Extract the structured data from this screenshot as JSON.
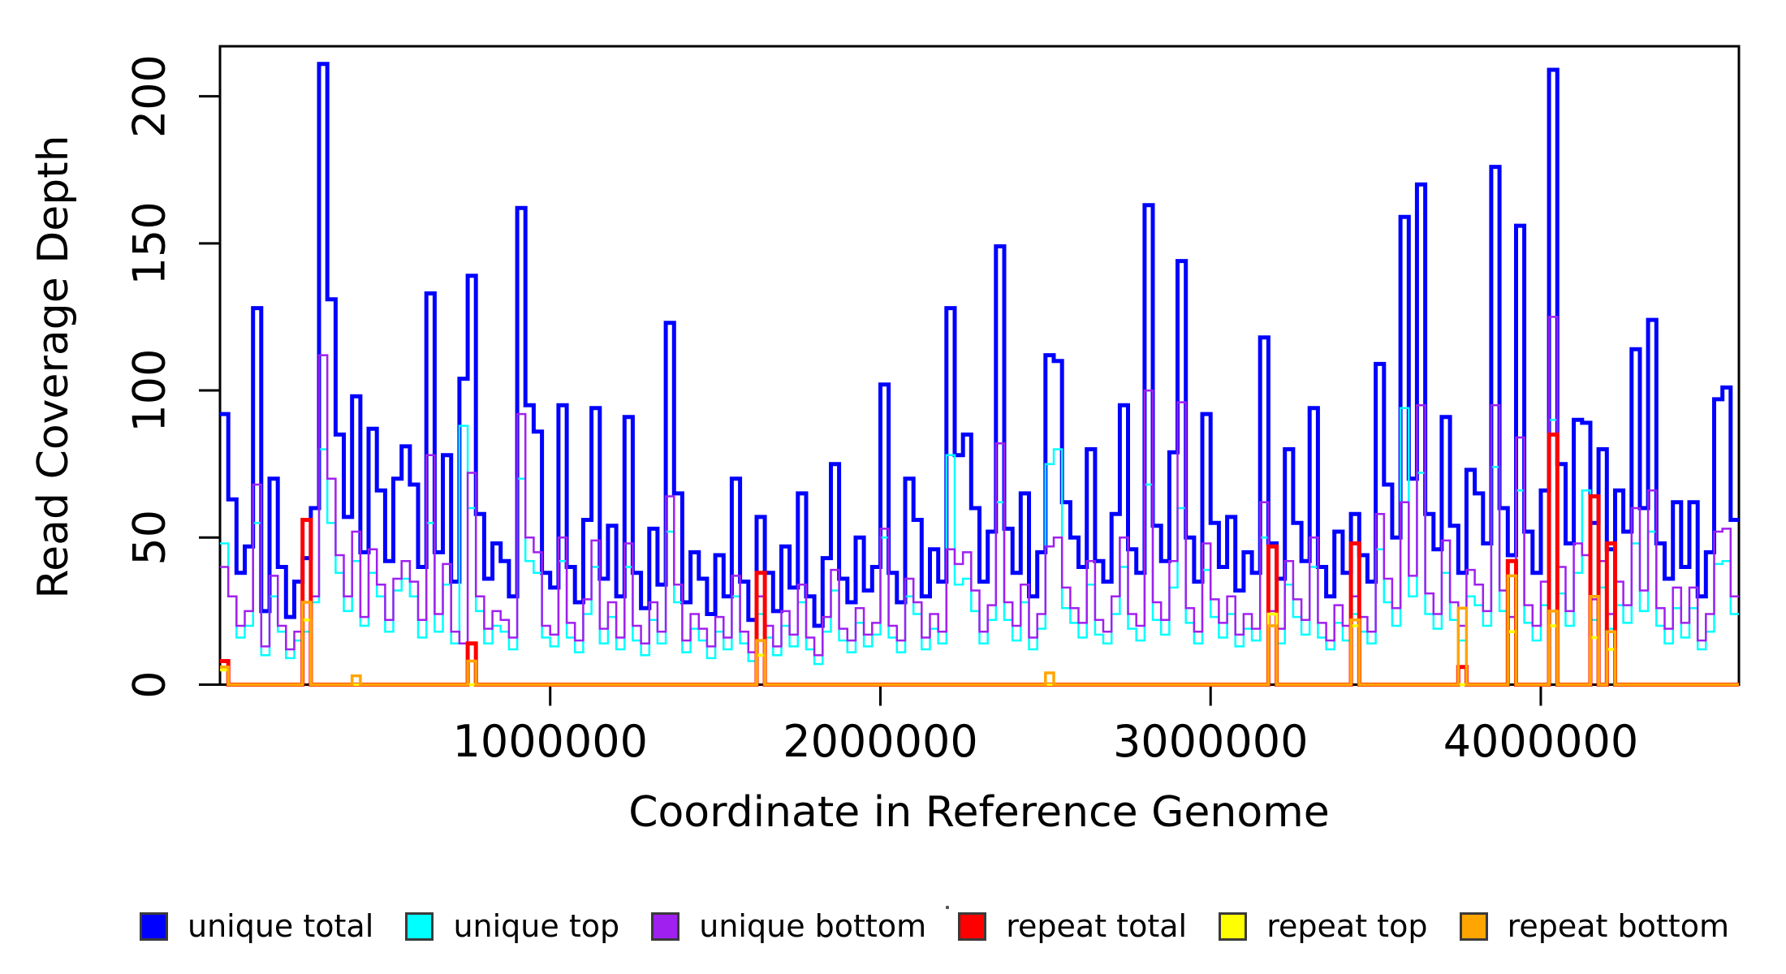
{
  "chart_data": {
    "type": "line",
    "subtype": "step-coverage-histogram",
    "title": "",
    "xlabel": "Coordinate in Reference Genome",
    "ylabel": "Read Coverage Depth",
    "xlim": [
      0,
      4600000
    ],
    "ylim": [
      0,
      217
    ],
    "x_ticks": [
      1000000,
      2000000,
      3000000,
      4000000
    ],
    "y_ticks": [
      0,
      50,
      100,
      150,
      200
    ],
    "grid": false,
    "legend_position": "bottom",
    "bin_size": 25000,
    "n_bins": 184,
    "series": [
      {
        "name": "unique total",
        "color": "#0000FF",
        "line_width": 5,
        "values": [
          92,
          63,
          38,
          47,
          128,
          25,
          70,
          40,
          23,
          35,
          43,
          60,
          211,
          131,
          85,
          57,
          98,
          45,
          87,
          66,
          42,
          70,
          81,
          68,
          40,
          133,
          45,
          78,
          35,
          104,
          139,
          58,
          36,
          48,
          42,
          30,
          162,
          95,
          86,
          38,
          33,
          95,
          40,
          28,
          56,
          94,
          36,
          54,
          30,
          91,
          38,
          26,
          53,
          34,
          123,
          65,
          28,
          45,
          36,
          24,
          44,
          30,
          70,
          35,
          22,
          57,
          38,
          25,
          47,
          33,
          65,
          30,
          20,
          43,
          75,
          36,
          28,
          50,
          32,
          40,
          102,
          38,
          28,
          70,
          56,
          30,
          46,
          35,
          128,
          78,
          85,
          60,
          35,
          52,
          149,
          53,
          38,
          65,
          30,
          45,
          112,
          110,
          62,
          50,
          40,
          80,
          42,
          35,
          58,
          95,
          46,
          38,
          163,
          54,
          42,
          79,
          144,
          50,
          35,
          92,
          55,
          40,
          57,
          32,
          45,
          38,
          118,
          48,
          36,
          80,
          55,
          42,
          94,
          40,
          30,
          52,
          38,
          58,
          44,
          35,
          109,
          68,
          50,
          159,
          70,
          170,
          58,
          46,
          91,
          54,
          38,
          73,
          65,
          48,
          176,
          60,
          44,
          156,
          52,
          38,
          66,
          209,
          75,
          48,
          90,
          89,
          55,
          80,
          46,
          66,
          52,
          114,
          60,
          124,
          48,
          36,
          62,
          40,
          62,
          30,
          45,
          97,
          101,
          56
        ]
      },
      {
        "name": "unique top",
        "color": "#00FFFF",
        "line_width": 2.5,
        "values": [
          48,
          30,
          16,
          20,
          55,
          10,
          30,
          18,
          9,
          15,
          18,
          28,
          80,
          55,
          38,
          25,
          42,
          20,
          38,
          30,
          18,
          32,
          36,
          30,
          16,
          55,
          18,
          34,
          14,
          88,
          60,
          25,
          14,
          20,
          18,
          12,
          70,
          42,
          38,
          16,
          13,
          42,
          16,
          11,
          24,
          40,
          14,
          23,
          12,
          40,
          15,
          10,
          22,
          14,
          52,
          28,
          11,
          19,
          15,
          9,
          18,
          12,
          30,
          14,
          8,
          24,
          16,
          10,
          20,
          13,
          28,
          12,
          7,
          18,
          32,
          15,
          11,
          21,
          13,
          17,
          50,
          16,
          11,
          30,
          24,
          12,
          19,
          14,
          78,
          34,
          36,
          25,
          14,
          22,
          62,
          22,
          15,
          28,
          12,
          19,
          75,
          80,
          26,
          21,
          16,
          34,
          17,
          14,
          24,
          40,
          19,
          15,
          68,
          22,
          17,
          33,
          60,
          21,
          14,
          39,
          23,
          16,
          24,
          13,
          19,
          15,
          50,
          20,
          14,
          34,
          23,
          17,
          40,
          16,
          12,
          21,
          15,
          24,
          18,
          14,
          46,
          28,
          20,
          94,
          30,
          72,
          24,
          19,
          38,
          22,
          15,
          30,
          27,
          20,
          74,
          25,
          18,
          66,
          21,
          15,
          27,
          90,
          31,
          20,
          38,
          66,
          22,
          33,
          19,
          27,
          21,
          48,
          25,
          52,
          20,
          14,
          26,
          16,
          26,
          12,
          18,
          41,
          42,
          24
        ]
      },
      {
        "name": "unique bottom",
        "color": "#A020F0",
        "line_width": 2.5,
        "values": [
          40,
          30,
          20,
          25,
          68,
          13,
          37,
          20,
          12,
          18,
          22,
          30,
          112,
          70,
          44,
          30,
          52,
          23,
          46,
          34,
          22,
          36,
          42,
          35,
          22,
          78,
          24,
          41,
          18,
          14,
          72,
          30,
          19,
          25,
          22,
          16,
          92,
          50,
          45,
          20,
          17,
          50,
          21,
          15,
          29,
          49,
          19,
          28,
          16,
          48,
          20,
          14,
          28,
          18,
          64,
          34,
          15,
          24,
          19,
          13,
          23,
          16,
          37,
          18,
          11,
          30,
          20,
          13,
          25,
          17,
          34,
          16,
          10,
          23,
          39,
          19,
          15,
          26,
          17,
          21,
          53,
          20,
          15,
          36,
          28,
          16,
          24,
          18,
          46,
          41,
          45,
          32,
          18,
          27,
          82,
          28,
          20,
          34,
          16,
          24,
          47,
          50,
          33,
          26,
          21,
          42,
          22,
          18,
          30,
          50,
          24,
          20,
          100,
          28,
          22,
          42,
          96,
          26,
          18,
          48,
          29,
          21,
          30,
          17,
          24,
          19,
          62,
          25,
          19,
          42,
          29,
          22,
          50,
          21,
          15,
          27,
          20,
          30,
          23,
          18,
          58,
          36,
          26,
          62,
          37,
          95,
          31,
          24,
          49,
          28,
          20,
          39,
          34,
          25,
          95,
          32,
          23,
          84,
          27,
          20,
          35,
          125,
          40,
          25,
          48,
          44,
          29,
          42,
          24,
          35,
          27,
          60,
          32,
          66,
          26,
          19,
          33,
          21,
          33,
          15,
          24,
          52,
          53,
          30
        ]
      },
      {
        "name": "repeat total",
        "color": "#FF0000",
        "line_width": 5,
        "baseline": 0,
        "spikes": [
          [
            0,
            8
          ],
          [
            10,
            56
          ],
          [
            30,
            14
          ],
          [
            65,
            38
          ],
          [
            127,
            47
          ],
          [
            137,
            48
          ],
          [
            150,
            6
          ],
          [
            156,
            42
          ],
          [
            161,
            85
          ],
          [
            166,
            64
          ],
          [
            168,
            48
          ]
        ]
      },
      {
        "name": "repeat top",
        "color": "#FFFF00",
        "line_width": 3.5,
        "baseline": 0,
        "spikes": [
          [
            0,
            5
          ],
          [
            10,
            22
          ],
          [
            65,
            10
          ],
          [
            127,
            24
          ],
          [
            137,
            20
          ],
          [
            156,
            18
          ],
          [
            161,
            20
          ],
          [
            166,
            16
          ],
          [
            168,
            12
          ]
        ]
      },
      {
        "name": "repeat bottom",
        "color": "#FFA500",
        "line_width": 3.5,
        "baseline": 0,
        "spikes": [
          [
            0,
            6
          ],
          [
            10,
            28
          ],
          [
            16,
            3
          ],
          [
            30,
            8
          ],
          [
            65,
            15
          ],
          [
            100,
            4
          ],
          [
            127,
            20
          ],
          [
            137,
            22
          ],
          [
            150,
            26
          ],
          [
            156,
            37
          ],
          [
            161,
            25
          ],
          [
            166,
            30
          ],
          [
            168,
            18
          ]
        ]
      }
    ]
  },
  "legend": {
    "items": [
      {
        "label": "unique total",
        "color": "#0000FF"
      },
      {
        "label": "unique top",
        "color": "#00FFFF"
      },
      {
        "label": "unique bottom",
        "color": "#A020F0"
      },
      {
        "label": "repeat total",
        "color": "#FF0000"
      },
      {
        "label": "repeat top",
        "color": "#FFFF00"
      },
      {
        "label": "repeat bottom",
        "color": "#FFA500"
      }
    ]
  }
}
